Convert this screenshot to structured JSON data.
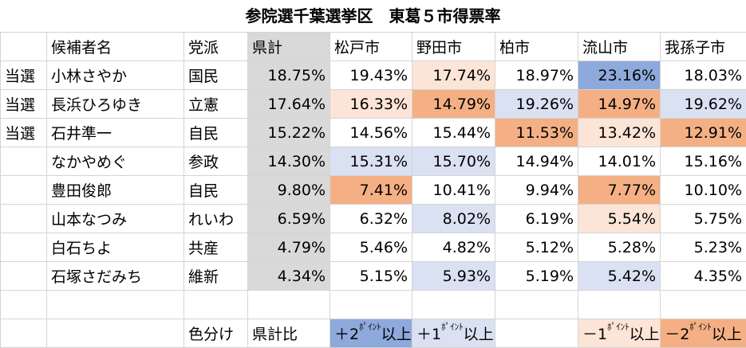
{
  "title": "参院選千葉選挙区　東葛５市得票率",
  "colors": {
    "plus2": "#8ea9db",
    "plus1": "#d9e1f2",
    "minus1": "#fce4d6",
    "minus2": "#f4b084",
    "county": "#d9d9d9"
  },
  "chart_data": {
    "type": "table",
    "title": "参院選千葉選挙区　東葛５市得票率",
    "columns": [
      "候補者名",
      "党派",
      "県計",
      "松戸市",
      "野田市",
      "柏市",
      "流山市",
      "我孫子市"
    ],
    "rows": [
      {
        "status": "当選",
        "name": "小林さやか",
        "party": "国民",
        "values": [
          "18.75%",
          "19.43%",
          "17.74%",
          "18.97%",
          "23.16%",
          "18.03%"
        ],
        "levels": [
          null,
          0,
          -1,
          0,
          2,
          0
        ]
      },
      {
        "status": "当選",
        "name": "長浜ひろゆき",
        "party": "立憲",
        "values": [
          "17.64%",
          "16.33%",
          "14.79%",
          "19.26%",
          "14.97%",
          "19.62%"
        ],
        "levels": [
          null,
          -1,
          -2,
          1,
          -2,
          1
        ]
      },
      {
        "status": "当選",
        "name": "石井準一",
        "party": "自民",
        "values": [
          "15.22%",
          "14.56%",
          "15.44%",
          "11.53%",
          "13.42%",
          "12.91%"
        ],
        "levels": [
          null,
          0,
          0,
          -2,
          -1,
          -2
        ]
      },
      {
        "status": "",
        "name": "なかやめぐ",
        "party": "参政",
        "values": [
          "14.30%",
          "15.31%",
          "15.70%",
          "14.94%",
          "14.01%",
          "15.16%"
        ],
        "levels": [
          null,
          1,
          1,
          0,
          0,
          0
        ]
      },
      {
        "status": "",
        "name": "豊田俊郎",
        "party": "自民",
        "values": [
          "9.80%",
          "7.41%",
          "10.41%",
          "9.94%",
          "7.77%",
          "10.10%"
        ],
        "levels": [
          null,
          -2,
          0,
          0,
          -2,
          0
        ]
      },
      {
        "status": "",
        "name": "山本なつみ",
        "party": "れいわ",
        "values": [
          "6.59%",
          "6.32%",
          "8.02%",
          "6.19%",
          "5.54%",
          "5.75%"
        ],
        "levels": [
          null,
          0,
          1,
          0,
          -1,
          0
        ]
      },
      {
        "status": "",
        "name": "白石ちよ",
        "party": "共産",
        "values": [
          "4.79%",
          "5.46%",
          "4.82%",
          "5.12%",
          "5.28%",
          "5.23%"
        ],
        "levels": [
          null,
          0,
          0,
          0,
          0,
          0
        ]
      },
      {
        "status": "",
        "name": "石塚さだみち",
        "party": "維新",
        "values": [
          "4.34%",
          "5.15%",
          "5.93%",
          "5.19%",
          "5.42%",
          "4.35%"
        ],
        "levels": [
          null,
          0,
          1,
          0,
          1,
          0
        ]
      }
    ]
  },
  "legend": {
    "label": "色分け",
    "basis": "県計比",
    "plus2": {
      "pre": "＋2",
      "sup": "ﾎﾟｲﾝﾄ",
      "post": "以上"
    },
    "plus1": {
      "pre": "＋1",
      "sup": "ﾎﾟｲﾝﾄ",
      "post": "以上"
    },
    "minus1": {
      "pre": "－1",
      "sup": "ﾎﾟｲﾝﾄ",
      "post": "以上"
    },
    "minus2": {
      "pre": "－2",
      "sup": "ﾎﾟｲﾝﾄ",
      "post": "以上"
    }
  }
}
